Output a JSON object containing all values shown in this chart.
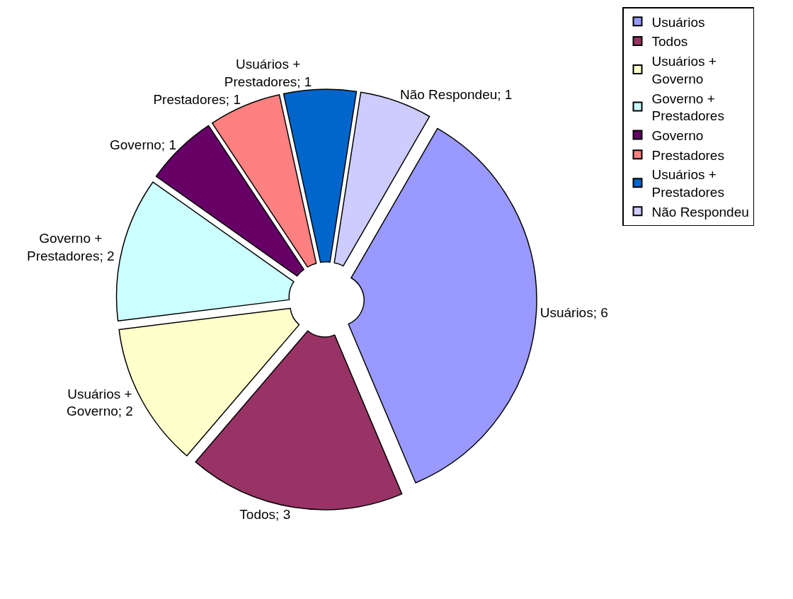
{
  "chart_data": {
    "type": "donut",
    "categories": [
      "Usuários",
      "Todos",
      "Usuários + Governo",
      "Governo + Prestadores",
      "Governo",
      "Prestadores",
      "Usuários + Prestadores",
      "Não Respondeu"
    ],
    "values": [
      6,
      3,
      2,
      2,
      1,
      1,
      1,
      1
    ],
    "colors": [
      "#9999ff",
      "#993366",
      "#ffffcc",
      "#ccffff",
      "#660066",
      "#ff8080",
      "#0066cc",
      "#ccccff"
    ],
    "value_labels": [
      "Usuários; 6",
      "Todos; 3",
      "Usuários + Governo; 2",
      "Governo + Prestadores; 2",
      "Governo; 1",
      "Prestadores; 1",
      "Usuários + Prestadores; 1",
      "Não Respondeu; 1"
    ],
    "legend": "right"
  }
}
